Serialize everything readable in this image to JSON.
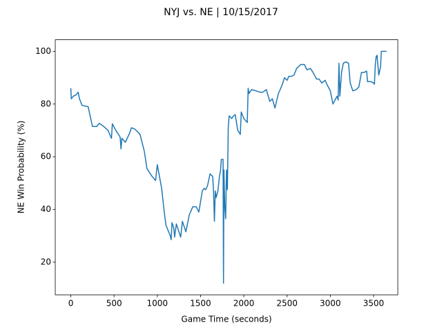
{
  "chart_data": {
    "type": "line",
    "title": "NYJ vs. NE | 10/15/2017",
    "xlabel": "Game Time (seconds)",
    "ylabel": "NE Win Probability (%)",
    "xlim": [
      -180,
      3780
    ],
    "ylim": [
      7.6,
      104.4
    ],
    "xticks": [
      0,
      500,
      1000,
      1500,
      2000,
      2500,
      3000,
      3500
    ],
    "yticks": [
      20,
      40,
      60,
      80,
      100
    ],
    "grid": false,
    "series": [
      {
        "color": "#1f77b4",
        "x": [
          0,
          5,
          30,
          60,
          85,
          100,
          130,
          200,
          250,
          300,
          330,
          380,
          430,
          470,
          480,
          520,
          570,
          580,
          590,
          630,
          680,
          700,
          740,
          800,
          850,
          880,
          940,
          980,
          1000,
          1050,
          1080,
          1100,
          1150,
          1160,
          1170,
          1190,
          1200,
          1220,
          1250,
          1270,
          1290,
          1330,
          1370,
          1390,
          1410,
          1450,
          1480,
          1520,
          1540,
          1560,
          1580,
          1610,
          1640,
          1650,
          1660,
          1670,
          1680,
          1700,
          1720,
          1730,
          1740,
          1760,
          1765,
          1770,
          1780,
          1790,
          1800,
          1810,
          1820,
          1830,
          1860,
          1880,
          1900,
          1930,
          1960,
          1970,
          2000,
          2040,
          2050,
          2060,
          2090,
          2140,
          2190,
          2220,
          2260,
          2300,
          2330,
          2360,
          2400,
          2440,
          2470,
          2500,
          2520,
          2550,
          2580,
          2610,
          2660,
          2700,
          2730,
          2770,
          2800,
          2840,
          2870,
          2900,
          2940,
          2960,
          3000,
          3030,
          3070,
          3080,
          3090,
          3100,
          3110,
          3130,
          3150,
          3180,
          3210,
          3230,
          3260,
          3300,
          3330,
          3360,
          3390,
          3420,
          3430,
          3470,
          3500,
          3510,
          3520,
          3530,
          3540,
          3560,
          3580,
          3590,
          3610,
          3650
        ],
        "values": [
          86,
          82,
          83,
          83.5,
          84.5,
          82,
          79.5,
          79,
          71.5,
          71.5,
          72.7,
          71.5,
          70,
          67,
          72.5,
          70,
          67.5,
          63,
          67,
          65.5,
          69,
          71,
          70.5,
          68.5,
          62,
          55.5,
          52.5,
          51,
          57,
          48,
          39,
          34,
          30,
          28.5,
          35,
          33,
          29.5,
          34.5,
          31.5,
          29.5,
          35.5,
          31.5,
          38,
          39.5,
          41,
          41,
          39,
          47,
          48,
          47.5,
          49,
          53.5,
          52.5,
          47,
          35.5,
          47,
          44.5,
          47,
          53,
          54.5,
          59,
          59,
          12,
          55,
          41,
          36.5,
          55,
          47.5,
          71,
          75.5,
          74.5,
          75.5,
          76,
          70,
          68.5,
          77,
          74.5,
          73,
          86,
          84,
          85.5,
          85,
          84.5,
          84.5,
          85.5,
          81,
          82,
          78.5,
          84,
          87,
          90,
          89,
          90.5,
          90.5,
          91,
          93.5,
          95,
          95,
          93,
          93.5,
          92,
          89.5,
          89.5,
          88,
          89,
          87.5,
          85,
          80,
          82.5,
          83,
          81.5,
          95.5,
          83,
          92,
          95.5,
          96,
          95.5,
          88,
          85,
          85.5,
          86.5,
          92,
          92,
          92.5,
          88.5,
          88.5,
          88,
          87.5,
          95,
          98,
          98.5,
          91,
          94,
          100,
          100,
          100
        ]
      }
    ]
  }
}
